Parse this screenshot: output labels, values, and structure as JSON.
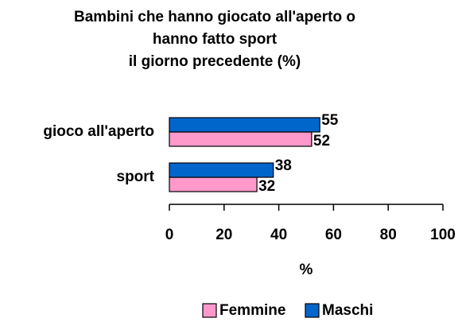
{
  "chart_data": {
    "type": "barh",
    "title": "Bambini che hanno giocato all'aperto o\nhanno fatto sport\nil giorno precedente (%)",
    "categories": [
      "gioco all'aperto",
      "sport"
    ],
    "series": [
      {
        "name": "Femmine",
        "color": "#ff99cc",
        "values": [
          52,
          32
        ]
      },
      {
        "name": "Maschi",
        "color": "#0066cc",
        "values": [
          55,
          38
        ]
      }
    ],
    "xlim": [
      0,
      100
    ],
    "xticks": [
      0,
      20,
      40,
      60,
      80,
      100
    ],
    "xlabel": "%",
    "legend": "bottom"
  }
}
